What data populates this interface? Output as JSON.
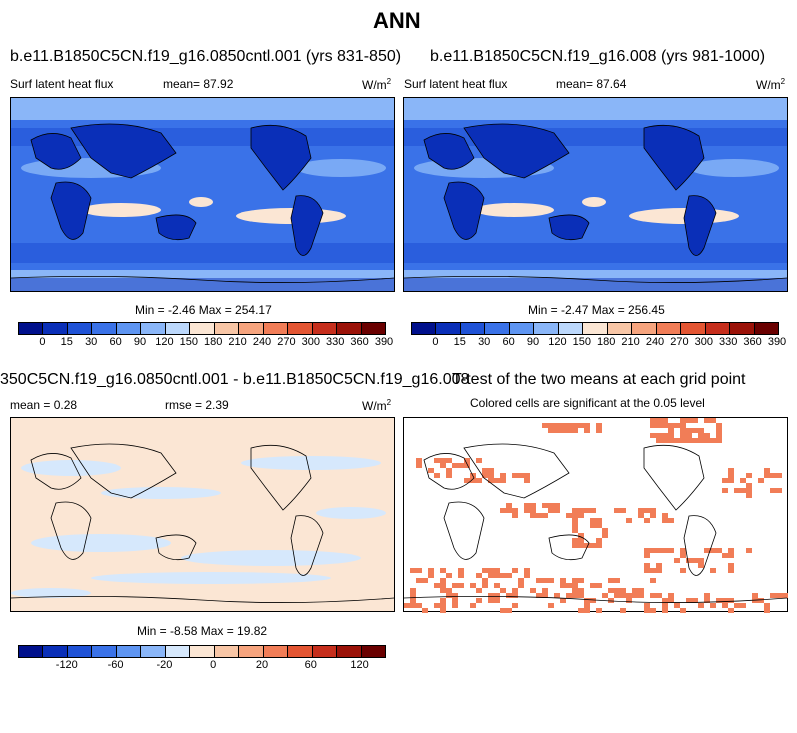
{
  "figure": {
    "title": "ANN"
  },
  "panel1": {
    "title": "b.e11.B1850C5CN.f19_g16.0850cntl.001 (yrs 831-850)",
    "variable": "Surf latent heat flux",
    "mean_label": "mean=",
    "mean_value": "87.92",
    "units": "W/m",
    "units_sup": "2",
    "minmax": "Min =  -2.46 Max = 254.17"
  },
  "panel2": {
    "title": "b.e11.B1850C5CN.f19_g16.008 (yrs 981-1000)",
    "variable": "Surf latent heat flux",
    "mean_label": "mean=",
    "mean_value": "87.64",
    "units": "W/m",
    "units_sup": "2",
    "minmax": "Min =  -2.47 Max = 256.45"
  },
  "panel3": {
    "title": "350C5CN.f19_g16.0850cntl.001 - b.e11.B1850C5CN.f19_g16.008",
    "mean_label": "mean =",
    "mean_value": "0.28",
    "rmse_label": "rmse =",
    "rmse_value": "2.39",
    "units": "W/m",
    "units_sup": "2",
    "minmax": "Min =  -8.58 Max =  19.82"
  },
  "panel4": {
    "title": "T-test of the two means at each grid point",
    "subtitle": "Colored cells are significant at the 0.05 level"
  },
  "colorbar_abs": {
    "colors": [
      "#00108c",
      "#0a2fb8",
      "#1f52d6",
      "#3a72e8",
      "#5e95f2",
      "#8ab6f8",
      "#bcd8fc",
      "#fbe6d4",
      "#f8c6a6",
      "#f6a47e",
      "#f17d57",
      "#e35532",
      "#c62e1c",
      "#9b1208",
      "#6a0000"
    ],
    "labels": [
      "0",
      "15",
      "30",
      "60",
      "90",
      "120",
      "150",
      "180",
      "210",
      "240",
      "270",
      "300",
      "330",
      "360",
      "390"
    ]
  },
  "colorbar_diff": {
    "colors": [
      "#00108c",
      "#0a2fb8",
      "#1f52d6",
      "#3a72e8",
      "#5e95f2",
      "#8ab6f8",
      "#d6e8fc",
      "#fbe6d4",
      "#f8c6a6",
      "#f6a47e",
      "#f17d57",
      "#e35532",
      "#c62e1c",
      "#9b1208",
      "#6a0000"
    ],
    "labels": [
      "-120",
      "-60",
      "-20",
      "0",
      "20",
      "60",
      "120"
    ]
  },
  "colors": {
    "ocean_low": "#1f52d6",
    "ocean_mid": "#3a72e8",
    "ocean_high": "#8ab6f8",
    "tropics": "#fbe6d4",
    "land_dark": "#0a2fb8",
    "diff_pos": "#fbe6d4",
    "diff_neg": "#d6e8fc",
    "signif": "#f17d57"
  }
}
